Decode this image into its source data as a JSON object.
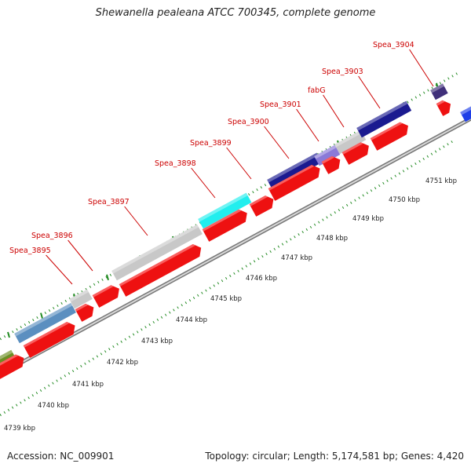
{
  "title": "Shewanella pealeana ATCC 700345, complete genome",
  "footer": {
    "accession": "Accession: NC_009901",
    "summary": "Topology: circular; Length: 5,174,581 bp; Genes: 4,420"
  },
  "gene_labels": [
    {
      "id": "Spea_3895"
    },
    {
      "id": "Spea_3896"
    },
    {
      "id": "Spea_3897"
    },
    {
      "id": "Spea_3898"
    },
    {
      "id": "Spea_3899"
    },
    {
      "id": "Spea_3900"
    },
    {
      "id": "Spea_3901"
    },
    {
      "id": "fabG"
    },
    {
      "id": "Spea_3903"
    },
    {
      "id": "Spea_3904"
    }
  ],
  "kbp_ticks": [
    "4739 kbp",
    "4740 kbp",
    "4741 kbp",
    "4742 kbp",
    "4743 kbp",
    "4744 kbp",
    "4745 kbp",
    "4746 kbp",
    "4747 kbp",
    "4748 kbp",
    "4749 kbp",
    "4750 kbp",
    "4751 kbp"
  ],
  "colors": {
    "cds": "#ee1111",
    "label": "#cc0000",
    "backbone": "#999999",
    "tick": "#228b22",
    "steelblue": "#5b8fc0",
    "gray": "#c8c8c8",
    "cyan": "#22eeee",
    "navy": "#1a1a90",
    "lavender": "#8a7ad8",
    "olive": "#6b8e23",
    "purple": "#40307a",
    "blue": "#1f3fe8"
  }
}
